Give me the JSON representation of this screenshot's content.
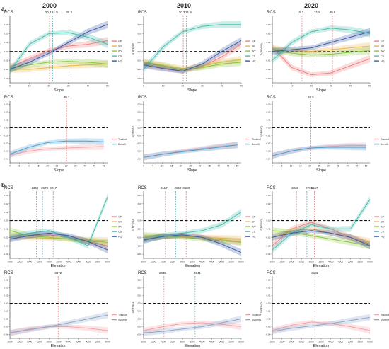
{
  "sections": {
    "a": "a.",
    "b": "b."
  },
  "years": [
    "2000",
    "2010",
    "2020"
  ],
  "colors": {
    "GP": "#f08080",
    "SR": "#e9b84a",
    "WY": "#8cc63f",
    "CS": "#4bbfae",
    "HQ": "#3b5ba5",
    "Tradeoff": "#f4a3a8",
    "Benefit": "#4b9fd0",
    "Synergy": "#8fa7c8",
    "vlineA": "#e07070",
    "vlineB": "#4aa6b5"
  },
  "chart_data": [
    {
      "type": "line",
      "panel": "a-2000-top",
      "title": "2000",
      "tag": "RCS",
      "xlabel": "Slope",
      "ylabel": "S(RFW/O)",
      "xlim": [
        0,
        50
      ],
      "ylim": [
        -0.035,
        0.04
      ],
      "x_ticks": [
        "0",
        "10",
        "20",
        "30",
        "40",
        "50"
      ],
      "y_ticks": [
        "0.03",
        "0.02",
        "0.01",
        "0.00",
        "-0.01",
        "-0.02",
        "-0.03"
      ],
      "thresholds": [
        "20.3",
        "21.9",
        "30.3"
      ],
      "threshold_x": [
        20.3,
        21.9,
        30.3
      ],
      "legend": [
        "GP",
        "SR",
        "WY",
        "CS",
        "HQ"
      ],
      "x": [
        0,
        10,
        20,
        30,
        40,
        50
      ],
      "series": [
        {
          "name": "GP",
          "values": [
            -0.018,
            -0.008,
            0.001,
            0.006,
            0.008,
            0.012
          ]
        },
        {
          "name": "SR",
          "values": [
            -0.02,
            -0.02,
            -0.018,
            -0.016,
            -0.015,
            -0.014
          ]
        },
        {
          "name": "WY",
          "values": [
            -0.019,
            -0.015,
            -0.012,
            -0.011,
            -0.012,
            -0.014
          ]
        },
        {
          "name": "CS",
          "values": [
            -0.022,
            0.008,
            0.02,
            0.021,
            0.016,
            0.008
          ]
        },
        {
          "name": "HQ",
          "values": [
            -0.02,
            -0.012,
            -0.002,
            0.01,
            0.022,
            0.03
          ]
        }
      ]
    },
    {
      "type": "line",
      "panel": "a-2010-top",
      "title": "2010",
      "tag": "RCS",
      "xlabel": "Slope",
      "ylabel": "S(RFW/O)",
      "xlim": [
        0,
        50
      ],
      "ylim": [
        -0.035,
        0.04
      ],
      "x_ticks": [
        "0",
        "10",
        "20",
        "30",
        "40",
        "50"
      ],
      "y_ticks": [
        "0.03",
        "0.02",
        "0.01",
        "0.00",
        "-0.01",
        "-0.02",
        "-0.03"
      ],
      "thresholds": [
        "20.3",
        "21.9"
      ],
      "threshold_x": [
        20.3,
        21.9
      ],
      "legend": [
        "GP",
        "SR",
        "WY",
        "CS",
        "HQ"
      ],
      "x": [
        0,
        10,
        20,
        30,
        40,
        50
      ],
      "series": [
        {
          "name": "GP",
          "values": [
            -0.014,
            -0.018,
            -0.022,
            -0.017,
            -0.006,
            0.008
          ]
        },
        {
          "name": "SR",
          "values": [
            -0.012,
            -0.015,
            -0.019,
            -0.016,
            -0.012,
            -0.009
          ]
        },
        {
          "name": "WY",
          "values": [
            -0.013,
            -0.016,
            -0.021,
            -0.018,
            -0.014,
            -0.012
          ]
        },
        {
          "name": "CS",
          "values": [
            -0.02,
            0.005,
            0.022,
            0.028,
            0.03,
            0.03
          ]
        },
        {
          "name": "HQ",
          "values": [
            -0.015,
            -0.019,
            -0.022,
            -0.014,
            0.0,
            0.012
          ]
        }
      ]
    },
    {
      "type": "line",
      "panel": "a-2020-top",
      "title": "2020",
      "tag": "RCS",
      "xlabel": "Slope",
      "ylabel": "S(RFW/O)",
      "xlim": [
        0,
        50
      ],
      "ylim": [
        -0.035,
        0.04
      ],
      "x_ticks": [
        "0",
        "10",
        "20",
        "30",
        "40",
        "50"
      ],
      "y_ticks": [
        "0.03",
        "0.02",
        "0.01",
        "0.00",
        "-0.01",
        "-0.02",
        "-0.03"
      ],
      "thresholds": [
        "15.2",
        "21.9",
        "30.8"
      ],
      "threshold_x": [
        15.2,
        21.9,
        30.8
      ],
      "legend": [
        "GP",
        "SR",
        "WY",
        "CS",
        "HQ"
      ],
      "x": [
        0,
        10,
        20,
        30,
        40,
        50
      ],
      "series": [
        {
          "name": "GP",
          "values": [
            0.005,
            -0.018,
            -0.026,
            -0.024,
            -0.016,
            -0.008
          ]
        },
        {
          "name": "SR",
          "values": [
            0.003,
            0.001,
            0.0,
            0.002,
            0.004,
            0.006
          ]
        },
        {
          "name": "WY",
          "values": [
            0.002,
            -0.002,
            -0.004,
            -0.003,
            -0.001,
            0.001
          ]
        },
        {
          "name": "CS",
          "values": [
            -0.01,
            0.01,
            0.022,
            0.026,
            0.024,
            0.02
          ]
        },
        {
          "name": "HQ",
          "values": [
            0.0,
            0.002,
            0.004,
            0.01,
            0.016,
            0.022
          ]
        }
      ]
    },
    {
      "type": "line",
      "panel": "a-2000-bottom",
      "tag": "RCS",
      "xlabel": "Slope",
      "ylabel": "S(RFW/O)",
      "xlim": [
        0,
        52
      ],
      "ylim": [
        -0.045,
        0.035
      ],
      "x_ticks": [
        "0",
        "5",
        "10",
        "15",
        "20",
        "25",
        "30",
        "35",
        "40",
        "45",
        "50"
      ],
      "y_ticks": [
        "0.03",
        "0.02",
        "0.01",
        "0.00",
        "-0.01",
        "-0.02",
        "-0.03",
        "-0.04"
      ],
      "thresholds": [
        "30.2"
      ],
      "threshold_x": [
        30.2
      ],
      "legend": [
        "Tradeoff",
        "Benefit"
      ],
      "x": [
        0,
        10,
        20,
        30,
        40,
        50
      ],
      "series": [
        {
          "name": "Tradeoff",
          "values": [
            -0.035,
            -0.03,
            -0.027,
            -0.026,
            -0.025,
            -0.024
          ]
        },
        {
          "name": "Benefit",
          "values": [
            -0.034,
            -0.025,
            -0.019,
            -0.017,
            -0.017,
            -0.018
          ]
        }
      ]
    },
    {
      "type": "line",
      "panel": "a-2010-bottom",
      "tag": "RCS",
      "xlabel": "Slope",
      "ylabel": "S(RFW/O)",
      "xlim": [
        0,
        52
      ],
      "ylim": [
        -0.045,
        0.035
      ],
      "x_ticks": [
        "0",
        "5",
        "10",
        "15",
        "20",
        "25",
        "30",
        "35",
        "40",
        "45",
        "50"
      ],
      "y_ticks": [
        "0.03",
        "0.02",
        "0.01",
        "0.00",
        "-0.01",
        "-0.02",
        "-0.03",
        "-0.04"
      ],
      "thresholds": [],
      "threshold_x": [],
      "legend": [
        "Tradeoff",
        "Benefit"
      ],
      "x": [
        0,
        10,
        20,
        30,
        40,
        50
      ],
      "series": [
        {
          "name": "Tradeoff",
          "values": [
            -0.038,
            -0.034,
            -0.03,
            -0.027,
            -0.024,
            -0.022
          ]
        },
        {
          "name": "Benefit",
          "values": [
            -0.038,
            -0.034,
            -0.031,
            -0.028,
            -0.025,
            -0.022
          ]
        }
      ]
    },
    {
      "type": "line",
      "panel": "a-2020-bottom",
      "tag": "RCS",
      "xlabel": "Slope",
      "ylabel": "S(RFW/O)",
      "xlim": [
        0,
        52
      ],
      "ylim": [
        -0.045,
        0.035
      ],
      "x_ticks": [
        "0",
        "5",
        "10",
        "15",
        "20",
        "25",
        "30",
        "35",
        "40",
        "45",
        "50"
      ],
      "y_ticks": [
        "0.03",
        "0.02",
        "0.01",
        "0.00",
        "-0.01",
        "-0.02",
        "-0.03",
        "-0.04"
      ],
      "thresholds": [
        "20.5"
      ],
      "threshold_x": [
        20.5
      ],
      "legend": [
        "Tradeoff",
        "Benefit"
      ],
      "x": [
        0,
        10,
        20,
        30,
        40,
        50
      ],
      "series": [
        {
          "name": "Tradeoff",
          "values": [
            -0.036,
            -0.03,
            -0.026,
            -0.024,
            -0.023,
            -0.023
          ]
        },
        {
          "name": "Benefit",
          "values": [
            -0.036,
            -0.03,
            -0.026,
            -0.025,
            -0.025,
            -0.025
          ]
        }
      ]
    },
    {
      "type": "line",
      "panel": "b-2000-top",
      "tag": "RCS",
      "xlabel": "Elevation",
      "ylabel": "S(RFW/O)",
      "xlim": [
        1000,
        6000
      ],
      "ylim": [
        -0.045,
        0.035
      ],
      "x_ticks": [
        "1000",
        "1500",
        "2000",
        "2500",
        "3000",
        "3500",
        "4000",
        "4500",
        "5000",
        "5500",
        "6000"
      ],
      "y_ticks": [
        "0.03",
        "0.02",
        "0.01",
        "0.00",
        "-0.01",
        "-0.02",
        "-0.03",
        "-0.04"
      ],
      "thresholds": [
        "2359",
        "2670",
        "3217"
      ],
      "threshold_x": [
        2359,
        2670,
        3217
      ],
      "legend": [
        "GP",
        "SR",
        "WY",
        "CS",
        "HQ"
      ],
      "x": [
        1000,
        2000,
        3000,
        4000,
        5000,
        6000
      ],
      "series": [
        {
          "name": "GP",
          "values": [
            -0.02,
            -0.018,
            -0.017,
            -0.02,
            -0.025,
            -0.03
          ]
        },
        {
          "name": "SR",
          "values": [
            -0.018,
            -0.02,
            -0.021,
            -0.022,
            -0.023,
            -0.024
          ]
        },
        {
          "name": "WY",
          "values": [
            -0.012,
            -0.018,
            -0.02,
            -0.022,
            -0.024,
            -0.026
          ]
        },
        {
          "name": "CS",
          "values": [
            -0.02,
            -0.015,
            -0.012,
            -0.02,
            -0.03,
            0.028
          ]
        },
        {
          "name": "HQ",
          "values": [
            -0.022,
            -0.018,
            -0.015,
            -0.018,
            -0.025,
            -0.035
          ]
        }
      ]
    },
    {
      "type": "line",
      "panel": "b-2010-top",
      "tag": "RCS",
      "xlabel": "Elevation",
      "ylabel": "S(RFW/O)",
      "xlim": [
        1000,
        6000
      ],
      "ylim": [
        -0.045,
        0.035
      ],
      "x_ticks": [
        "1000",
        "1500",
        "2000",
        "2500",
        "3000",
        "3500",
        "4000",
        "4500",
        "5000",
        "5500",
        "6000"
      ],
      "y_ticks": [
        "0.03",
        "0.02",
        "0.01",
        "0.00",
        "-0.01",
        "-0.02",
        "-0.03",
        "-0.04"
      ],
      "thresholds": [
        "2117",
        "2650",
        "3180"
      ],
      "threshold_x": [
        2117,
        2650,
        3180
      ],
      "legend": [
        "GP",
        "SR",
        "WY",
        "CS",
        "HQ"
      ],
      "x": [
        1000,
        2000,
        3000,
        4000,
        5000,
        6000
      ],
      "series": [
        {
          "name": "GP",
          "values": [
            -0.022,
            -0.019,
            -0.018,
            -0.02,
            -0.023,
            -0.025
          ]
        },
        {
          "name": "SR",
          "values": [
            -0.02,
            -0.019,
            -0.019,
            -0.02,
            -0.021,
            -0.022
          ]
        },
        {
          "name": "WY",
          "values": [
            -0.018,
            -0.018,
            -0.02,
            -0.022,
            -0.024,
            -0.026
          ]
        },
        {
          "name": "CS",
          "values": [
            -0.024,
            -0.018,
            -0.015,
            -0.012,
            -0.005,
            0.01
          ]
        },
        {
          "name": "HQ",
          "values": [
            -0.023,
            -0.019,
            -0.017,
            -0.02,
            -0.028,
            -0.038
          ]
        }
      ]
    },
    {
      "type": "line",
      "panel": "b-2020-top",
      "tag": "RCS",
      "xlabel": "Elevation",
      "ylabel": "S(RFW/O)",
      "xlim": [
        1000,
        6000
      ],
      "ylim": [
        -0.045,
        0.035
      ],
      "x_ticks": [
        "1000",
        "1500",
        "2000",
        "2500",
        "3000",
        "3500",
        "4000",
        "4500",
        "5000",
        "5500",
        "6000"
      ],
      "y_ticks": [
        "0.03",
        "0.02",
        "0.01",
        "0.00",
        "-0.01",
        "-0.02",
        "-0.03",
        "-0.04"
      ],
      "thresholds": [
        "2236",
        "2771",
        "3157"
      ],
      "threshold_x": [
        2236,
        2771,
        3157
      ],
      "legend": [
        "GP",
        "SR",
        "WY",
        "CS",
        "HQ"
      ],
      "x": [
        1000,
        2000,
        3000,
        4000,
        5000,
        6000
      ],
      "series": [
        {
          "name": "GP",
          "values": [
            -0.03,
            -0.01,
            -0.002,
            -0.01,
            -0.02,
            -0.028
          ]
        },
        {
          "name": "SR",
          "values": [
            -0.02,
            -0.012,
            -0.01,
            -0.015,
            -0.02,
            -0.025
          ]
        },
        {
          "name": "WY",
          "values": [
            -0.012,
            -0.014,
            -0.018,
            -0.022,
            -0.026,
            -0.03
          ]
        },
        {
          "name": "CS",
          "values": [
            -0.035,
            -0.015,
            -0.005,
            -0.01,
            -0.01,
            0.025
          ]
        },
        {
          "name": "HQ",
          "values": [
            -0.02,
            -0.015,
            -0.012,
            -0.015,
            -0.02,
            -0.03
          ]
        }
      ]
    },
    {
      "type": "line",
      "panel": "b-2000-bottom",
      "tag": "RCS",
      "xlabel": "Elevation",
      "ylabel": "S(RFW/O)",
      "xlim": [
        1000,
        6000
      ],
      "ylim": [
        -0.045,
        0.035
      ],
      "x_ticks": [
        "1000",
        "1500",
        "2000",
        "2500",
        "3000",
        "3500",
        "4000",
        "4500",
        "5000",
        "5500",
        "6000"
      ],
      "y_ticks": [
        "0.03",
        "0.02",
        "0.01",
        "0.00",
        "-0.01",
        "-0.02",
        "-0.03",
        "-0.04"
      ],
      "thresholds": [
        "3472"
      ],
      "threshold_x": [
        3472
      ],
      "legend": [
        "Tradeoff",
        "Synergy"
      ],
      "x": [
        1000,
        2000,
        3000,
        4000,
        5000,
        6000
      ],
      "series": [
        {
          "name": "Tradeoff",
          "values": [
            -0.038,
            -0.033,
            -0.03,
            -0.03,
            -0.032,
            -0.035
          ]
        },
        {
          "name": "Synergy",
          "values": [
            -0.038,
            -0.034,
            -0.03,
            -0.025,
            -0.02,
            -0.015
          ]
        }
      ]
    },
    {
      "type": "line",
      "panel": "b-2010-bottom",
      "tag": "RCS",
      "xlabel": "Elevation",
      "ylabel": "S(RFW/O)",
      "xlim": [
        1000,
        6000
      ],
      "ylim": [
        -0.045,
        0.035
      ],
      "x_ticks": [
        "1000",
        "1500",
        "2000",
        "2500",
        "3000",
        "3500",
        "4000",
        "4500",
        "5000",
        "5500",
        "6000"
      ],
      "y_ticks": [
        "0.03",
        "0.02",
        "0.01",
        "0.00",
        "-0.01",
        "-0.02",
        "-0.03",
        "-0.04"
      ],
      "thresholds": [
        "2045",
        "3641"
      ],
      "threshold_x": [
        2045,
        3641
      ],
      "legend": [
        "Tradeoff",
        "Synergy"
      ],
      "x": [
        1000,
        2000,
        3000,
        4000,
        5000,
        6000
      ],
      "series": [
        {
          "name": "Tradeoff",
          "values": [
            -0.035,
            -0.03,
            -0.026,
            -0.025,
            -0.027,
            -0.03
          ]
        },
        {
          "name": "Synergy",
          "values": [
            -0.038,
            -0.036,
            -0.033,
            -0.03,
            -0.025,
            -0.02
          ]
        }
      ]
    },
    {
      "type": "line",
      "panel": "b-2020-bottom",
      "tag": "RCS",
      "xlabel": "Elevation",
      "ylabel": "S(RFW/O)",
      "xlim": [
        1000,
        6000
      ],
      "ylim": [
        -0.045,
        0.035
      ],
      "x_ticks": [
        "1000",
        "1500",
        "2000",
        "2500",
        "3000",
        "3500",
        "4000",
        "4500",
        "5000",
        "5500",
        "6000"
      ],
      "y_ticks": [
        "0.03",
        "0.02",
        "0.01",
        "0.00",
        "-0.01",
        "-0.02",
        "-0.03",
        "-0.04"
      ],
      "thresholds": [
        "3182"
      ],
      "threshold_x": [
        3182
      ],
      "legend": [
        "Tradeoff",
        "Synergy"
      ],
      "x": [
        1000,
        2000,
        3000,
        4000,
        5000,
        6000
      ],
      "series": [
        {
          "name": "Tradeoff",
          "values": [
            -0.035,
            -0.028,
            -0.024,
            -0.026,
            -0.03,
            -0.035
          ]
        },
        {
          "name": "Synergy",
          "values": [
            -0.036,
            -0.032,
            -0.029,
            -0.026,
            -0.022,
            -0.018
          ]
        }
      ]
    }
  ]
}
